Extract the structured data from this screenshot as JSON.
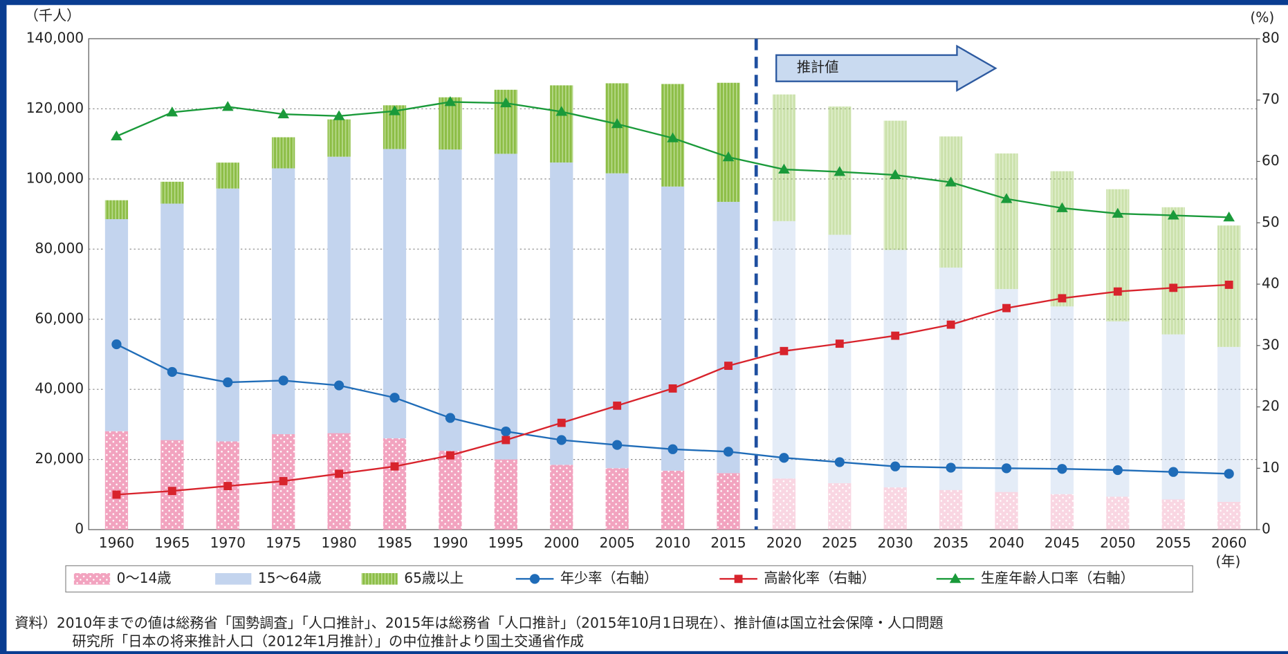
{
  "chart_data": {
    "type": "bar_line",
    "unit_left": "（千人）",
    "unit_right": "(%)",
    "unit_x": "(年)",
    "annotation": "推計値",
    "categories": [
      "1960",
      "1965",
      "1970",
      "1975",
      "1980",
      "1985",
      "1990",
      "1995",
      "2000",
      "2005",
      "2010",
      "2015",
      "2020",
      "2025",
      "2030",
      "2035",
      "2040",
      "2045",
      "2050",
      "2055",
      "2060"
    ],
    "series": [
      {
        "name": "0〜14歳",
        "color": "#f2a3bf",
        "values": [
          28067,
          25529,
          25153,
          27221,
          27507,
          26033,
          22486,
          20014,
          18472,
          17521,
          16803,
          16121,
          14568,
          13240,
          12039,
          11287,
          10732,
          10116,
          9387,
          8614,
          7912
        ]
      },
      {
        "name": "15〜64歳",
        "color": "#c3d4ee",
        "values": [
          60469,
          67444,
          72119,
          75807,
          78835,
          82506,
          85904,
          87165,
          86220,
          84092,
          81032,
          77354,
          73408,
          70845,
          67730,
          63430,
          57866,
          53531,
          50013,
          47063,
          44183
        ]
      },
      {
        "name": "65歳以上",
        "color": "#8cbd45",
        "values": [
          5398,
          6236,
          7393,
          8865,
          10647,
          12468,
          14895,
          18261,
          22005,
          25672,
          29246,
          33952,
          36124,
          36573,
          36849,
          37407,
          38678,
          38564,
          37676,
          36257,
          34642
        ]
      },
      {
        "name": "年少率（右軸）",
        "color": "#1f6cb8",
        "axis": "y2",
        "marker": "circle",
        "values": [
          30.2,
          25.7,
          24.0,
          24.3,
          23.5,
          21.5,
          18.2,
          16.0,
          14.6,
          13.8,
          13.1,
          12.7,
          11.7,
          11.0,
          10.3,
          10.1,
          10.0,
          9.9,
          9.7,
          9.4,
          9.1
        ]
      },
      {
        "name": "高齢化率（右軸）",
        "color": "#d8232c",
        "axis": "y2",
        "marker": "square",
        "values": [
          5.7,
          6.3,
          7.1,
          7.9,
          9.1,
          10.3,
          12.1,
          14.6,
          17.4,
          20.2,
          23.0,
          26.7,
          29.1,
          30.3,
          31.6,
          33.4,
          36.1,
          37.7,
          38.8,
          39.4,
          39.9
        ]
      },
      {
        "name": "生産年齢人口率（右軸）",
        "color": "#1a9a3a",
        "axis": "y2",
        "marker": "triangle",
        "values": [
          64.1,
          68.0,
          68.9,
          67.7,
          67.4,
          68.2,
          69.7,
          69.5,
          68.1,
          66.1,
          63.8,
          60.7,
          58.7,
          58.3,
          57.8,
          56.6,
          53.9,
          52.4,
          51.5,
          51.2,
          50.9
        ]
      }
    ],
    "ylim": [
      0,
      140000
    ],
    "yticks": [
      0,
      {
        "value": 20000,
        "label": "20,000"
      },
      {
        "value": 40000,
        "label": "40,000"
      },
      {
        "value": 60000,
        "label": "60,000"
      },
      {
        "value": 80000,
        "label": "80,000"
      },
      {
        "value": 100000,
        "label": "100,000"
      },
      {
        "value": 120000,
        "label": "120,000"
      },
      {
        "value": 140000,
        "label": "140,000"
      }
    ],
    "y2lim": [
      0,
      80
    ],
    "y2ticks": [
      0,
      10,
      20,
      30,
      40,
      50,
      60,
      70,
      80
    ],
    "grid": true,
    "source": [
      "資料）2010年までの値は総務省「国勢調査」「人口推計」、2015年は総務省「人口推計」（2015年10月1日現在）、推計値は国立社会保障・人口問題",
      "研究所「日本の将来推計人口（2012年1月推計）」の中位推計より国土交通省作成"
    ]
  }
}
